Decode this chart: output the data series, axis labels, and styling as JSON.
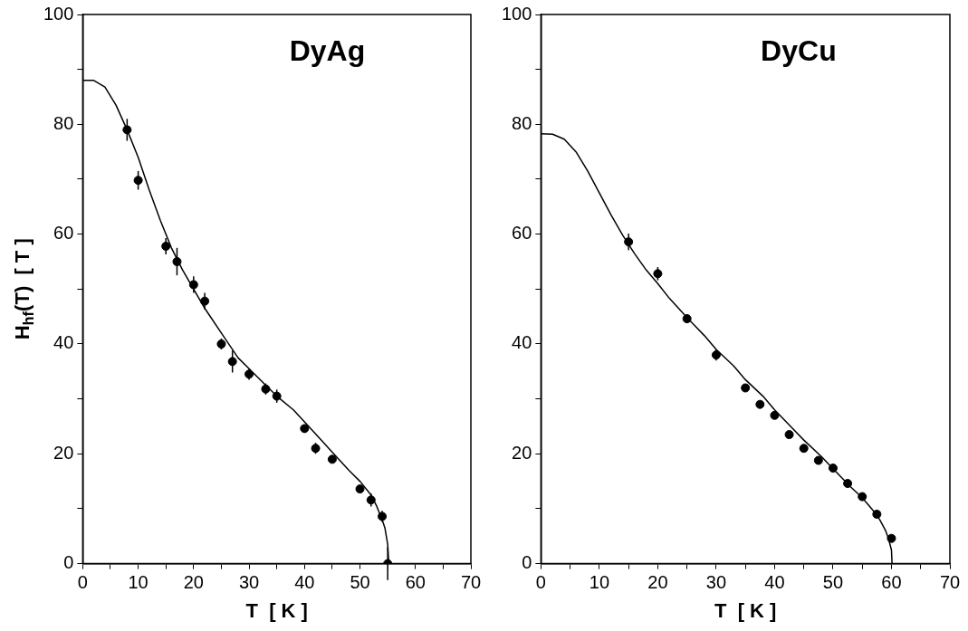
{
  "chart_data": [
    {
      "type": "scatter",
      "title": "DyAg",
      "xlabel": "T  [ K ]",
      "ylabel": "H$_{hf}$(T)  [ T ]",
      "xlim": [
        0,
        70
      ],
      "xticks": [
        0,
        {
          "value": 5,
          "label": null
        },
        10,
        {
          "value": 15,
          "label": null
        },
        20,
        {
          "value": 25,
          "label": null
        },
        30,
        {
          "value": 35,
          "label": null
        },
        40,
        {
          "value": 45,
          "label": null
        },
        50,
        {
          "value": 55,
          "label": null
        },
        60,
        {
          "value": 65,
          "label": null
        },
        70
      ],
      "ylim": [
        0,
        100
      ],
      "yticks": [
        0,
        {
          "value": 10,
          "label": null
        },
        20,
        {
          "value": 30,
          "label": null
        },
        40,
        {
          "value": 50,
          "label": null
        },
        60,
        {
          "value": 70,
          "label": null
        },
        80,
        {
          "value": 90,
          "label": null
        },
        100
      ],
      "grid": false,
      "line_style": "solid",
      "series": [
        {
          "marker": "circle",
          "color": "#000000",
          "x": [
            8,
            10,
            15,
            17,
            20,
            22,
            25,
            27,
            30,
            33,
            35,
            40,
            42,
            45,
            50,
            52,
            54,
            55
          ],
          "values": [
            79,
            69.8,
            57.8,
            55,
            50.8,
            47.8,
            40,
            36.8,
            34.5,
            31.8,
            30.5,
            24.6,
            21,
            19,
            13.6,
            11.6,
            8.6,
            0
          ],
          "errors": [
            2,
            1.7,
            1.5,
            2.5,
            1.5,
            1.5,
            1,
            2,
            1,
            1,
            1.2,
            0.5,
            1,
            0.5,
            0.5,
            1.2,
            1,
            3
          ]
        },
        {
          "type": "line",
          "marker": "none",
          "color": "#000000",
          "x": [
            0,
            2,
            4,
            6,
            8,
            10,
            12,
            14,
            16,
            18,
            20,
            22,
            25,
            28,
            30,
            33,
            35,
            38,
            40,
            43,
            45,
            48,
            50,
            52,
            53,
            54,
            54.5,
            55,
            55.2
          ],
          "values": [
            88,
            88,
            86.8,
            83.5,
            79,
            74,
            68,
            62.5,
            57.5,
            53.5,
            50,
            46.5,
            42,
            37.5,
            35.5,
            32.5,
            30.5,
            28,
            25.8,
            22.5,
            20.3,
            17,
            15,
            12.5,
            10.5,
            8,
            6.5,
            3.5,
            0
          ]
        }
      ]
    },
    {
      "type": "scatter",
      "title": "DyCu",
      "xlabel": "T  [ K ]",
      "xlim": [
        0,
        70
      ],
      "xticks": [
        0,
        {
          "value": 5,
          "label": null
        },
        10,
        {
          "value": 15,
          "label": null
        },
        20,
        {
          "value": 25,
          "label": null
        },
        30,
        {
          "value": 35,
          "label": null
        },
        40,
        {
          "value": 45,
          "label": null
        },
        50,
        {
          "value": 55,
          "label": null
        },
        60,
        {
          "value": 65,
          "label": null
        },
        70
      ],
      "ylim": [
        0,
        100
      ],
      "yticks": [
        0,
        {
          "value": 10,
          "label": null
        },
        20,
        {
          "value": 30,
          "label": null
        },
        40,
        {
          "value": 50,
          "label": null
        },
        60,
        {
          "value": 70,
          "label": null
        },
        80,
        {
          "value": 90,
          "label": null
        },
        100
      ],
      "grid": false,
      "line_style": "solid",
      "series": [
        {
          "marker": "circle",
          "color": "#000000",
          "x": [
            15,
            20,
            25,
            30,
            35,
            37.5,
            40,
            42.5,
            45,
            47.5,
            50,
            52.5,
            55,
            57.5,
            60
          ],
          "values": [
            58.6,
            52.8,
            44.6,
            38,
            32,
            29,
            27,
            23.5,
            21,
            18.8,
            17.4,
            14.6,
            12.2,
            9,
            4.6
          ],
          "errors": [
            1.5,
            1.2,
            0.8,
            1,
            0.6,
            0.6,
            0.6,
            0.5,
            0.5,
            0.5,
            0.5,
            0.5,
            0.5,
            0.5,
            0.5
          ]
        },
        {
          "type": "line",
          "marker": "none",
          "color": "#000000",
          "x": [
            0,
            2,
            4,
            6,
            8,
            10,
            12,
            14,
            16,
            18,
            20,
            22,
            25,
            28,
            30,
            33,
            35,
            38,
            40,
            43,
            45,
            48,
            50,
            53,
            55,
            57,
            58,
            59,
            59.5,
            60,
            60.1
          ],
          "values": [
            78.3,
            78.2,
            77.3,
            75,
            71.5,
            67.5,
            63.5,
            59.8,
            56.5,
            53.5,
            51,
            48.3,
            44.8,
            41.5,
            39,
            36,
            33.5,
            30.5,
            28,
            24.7,
            22.5,
            19.5,
            17.3,
            14,
            12,
            9.5,
            8,
            6,
            4.5,
            2.5,
            0
          ]
        }
      ]
    }
  ]
}
